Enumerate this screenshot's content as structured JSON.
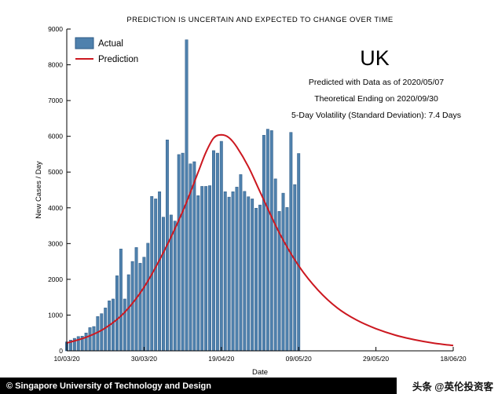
{
  "title": "PREDICTION IS UNCERTAIN AND EXPECTED TO CHANGE OVER TIME",
  "legend": {
    "actual": "Actual",
    "prediction": "Prediction"
  },
  "annotation": {
    "country": "UK",
    "line1": "Predicted with Data as of 2020/05/07",
    "line2": "Theoretical Ending on 2020/09/30",
    "line3": "5-Day Volatility (Standard Deviation): 7.4 Days"
  },
  "footer": {
    "copyright": "© Singapore University of Technology and Design",
    "watermark": "头条 @英伦投资客"
  },
  "colors": {
    "bar_fill": "#4f81ad",
    "bar_edge": "#2e5a85",
    "prediction_line": "#cc1820",
    "axis": "#000000"
  },
  "chart_data": {
    "type": "bar",
    "title": "PREDICTION IS UNCERTAIN AND EXPECTED TO CHANGE OVER TIME",
    "xlabel": "Date",
    "ylabel": "New Cases / Day",
    "ylim": [
      0,
      9000
    ],
    "ytick_interval": 1000,
    "x_tick_labels": [
      "10/03/20",
      "30/03/20",
      "19/04/20",
      "09/05/20",
      "29/05/20",
      "18/06/20"
    ],
    "x_tick_days": [
      0,
      20,
      40,
      60,
      80,
      100
    ],
    "x_range_days": [
      0,
      100
    ],
    "grid": false,
    "legend_position": "top-left",
    "series": [
      {
        "name": "Actual",
        "type": "bar",
        "start_date": "10/03/20",
        "end_date": "09/05/20",
        "values": [
          250,
          300,
          350,
          400,
          410,
          500,
          650,
          680,
          960,
          1040,
          1200,
          1400,
          1450,
          2100,
          2850,
          1450,
          2130,
          2500,
          2890,
          2450,
          2620,
          3010,
          4320,
          4250,
          4450,
          3740,
          5900,
          3800,
          3630,
          5490,
          5530,
          8700,
          5230,
          5290,
          4340,
          4600,
          4600,
          4620,
          5600,
          5530,
          5860,
          4450,
          4300,
          4450,
          4580,
          4930,
          4460,
          4310,
          4250,
          3990,
          4080,
          6030,
          6200,
          6160,
          4810,
          3900,
          4410,
          4010,
          6110,
          4650,
          5520
        ]
      },
      {
        "name": "Prediction",
        "type": "line",
        "points": [
          [
            0,
            220
          ],
          [
            5,
            380
          ],
          [
            10,
            640
          ],
          [
            15,
            1080
          ],
          [
            20,
            1780
          ],
          [
            25,
            2750
          ],
          [
            30,
            3900
          ],
          [
            34,
            5000
          ],
          [
            36,
            5550
          ],
          [
            38,
            5950
          ],
          [
            40,
            6040
          ],
          [
            42,
            5960
          ],
          [
            44,
            5700
          ],
          [
            47,
            5150
          ],
          [
            50,
            4450
          ],
          [
            55,
            3300
          ],
          [
            60,
            2380
          ],
          [
            65,
            1700
          ],
          [
            70,
            1200
          ],
          [
            75,
            860
          ],
          [
            80,
            620
          ],
          [
            85,
            440
          ],
          [
            90,
            310
          ],
          [
            95,
            215
          ],
          [
            100,
            150
          ]
        ]
      }
    ]
  }
}
